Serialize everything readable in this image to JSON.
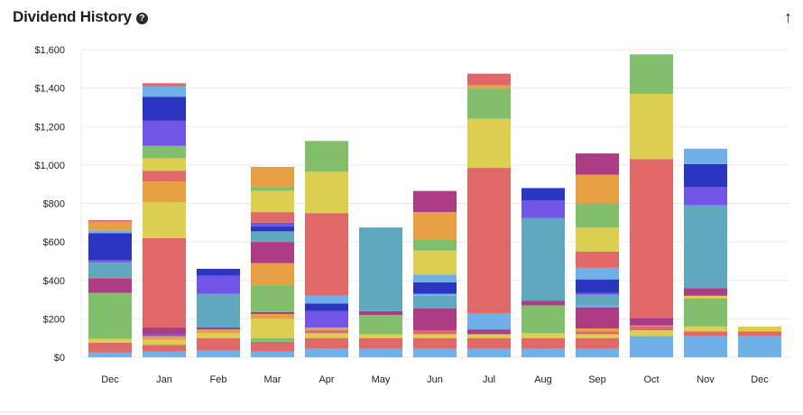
{
  "header": {
    "title": "Dividend History",
    "help_icon": "?",
    "export_icon": "↑"
  },
  "palette": {
    "blue_light": "#6fb0e8",
    "red": "#e06868",
    "yellow": "#dcce50",
    "green": "#82bf6c",
    "purple": "#7255e6",
    "blue_dark": "#2a35c0",
    "orange": "#e8a045",
    "magenta": "#ac3c84",
    "teal": "#5fa8c0"
  },
  "chart_data": {
    "type": "bar",
    "stacked": true,
    "ylim": [
      0,
      1600
    ],
    "y_ticks": [
      "$0",
      "$200",
      "$400",
      "$600",
      "$800",
      "$1,000",
      "$1,200",
      "$1,400",
      "$1,600"
    ],
    "y_tick_values": [
      0,
      200,
      400,
      600,
      800,
      1000,
      1200,
      1400,
      1600
    ],
    "grid": true,
    "categories": [
      "Dec",
      "Jan",
      "Feb",
      "Mar",
      "Apr",
      "May",
      "Jun",
      "Jul",
      "Aug",
      "Sep",
      "Oct",
      "Nov",
      "Dec"
    ],
    "stacks": [
      [
        [
          "blue_light",
          25
        ],
        [
          "red",
          50
        ],
        [
          "yellow",
          20
        ],
        [
          "green",
          240
        ],
        [
          "magenta",
          75
        ],
        [
          "red",
          5
        ],
        [
          "teal",
          80
        ],
        [
          "purple",
          10
        ],
        [
          "blue_dark",
          140
        ],
        [
          "blue_light",
          15
        ],
        [
          "orange",
          45
        ],
        [
          "red",
          8
        ]
      ],
      [
        [
          "blue_light",
          30
        ],
        [
          "red",
          35
        ],
        [
          "yellow",
          25
        ],
        [
          "orange",
          20
        ],
        [
          "purple",
          10
        ],
        [
          "magenta",
          35
        ],
        [
          "red",
          465
        ],
        [
          "yellow",
          185
        ],
        [
          "orange",
          110
        ],
        [
          "red",
          55
        ],
        [
          "yellow",
          65
        ],
        [
          "green",
          65
        ],
        [
          "purple",
          130
        ],
        [
          "blue_dark",
          125
        ],
        [
          "blue_light",
          55
        ],
        [
          "red",
          15
        ]
      ],
      [
        [
          "blue_light",
          35
        ],
        [
          "red",
          65
        ],
        [
          "yellow",
          25
        ],
        [
          "orange",
          20
        ],
        [
          "magenta",
          10
        ],
        [
          "teal",
          175
        ],
        [
          "purple",
          95
        ],
        [
          "blue_dark",
          35
        ]
      ],
      [
        [
          "blue_light",
          30
        ],
        [
          "red",
          50
        ],
        [
          "green",
          20
        ],
        [
          "yellow",
          100
        ],
        [
          "orange",
          25
        ],
        [
          "magenta",
          10
        ],
        [
          "green",
          140
        ],
        [
          "orange",
          115
        ],
        [
          "magenta",
          110
        ],
        [
          "teal",
          55
        ],
        [
          "blue_dark",
          25
        ],
        [
          "purple",
          20
        ],
        [
          "red",
          55
        ],
        [
          "yellow",
          110
        ],
        [
          "green",
          20
        ],
        [
          "orange",
          105
        ]
      ],
      [
        [
          "blue_light",
          45
        ],
        [
          "red",
          55
        ],
        [
          "yellow",
          25
        ],
        [
          "red",
          15
        ],
        [
          "green",
          5
        ],
        [
          "orange",
          10
        ],
        [
          "purple",
          85
        ],
        [
          "blue_dark",
          40
        ],
        [
          "blue_light",
          40
        ],
        [
          "red",
          430
        ],
        [
          "yellow",
          215
        ],
        [
          "green",
          160
        ]
      ],
      [
        [
          "blue_light",
          45
        ],
        [
          "red",
          55
        ],
        [
          "yellow",
          20
        ],
        [
          "green",
          100
        ],
        [
          "magenta",
          20
        ],
        [
          "teal",
          435
        ]
      ],
      [
        [
          "blue_light",
          45
        ],
        [
          "red",
          55
        ],
        [
          "yellow",
          20
        ],
        [
          "red",
          20
        ],
        [
          "magenta",
          115
        ],
        [
          "teal",
          65
        ],
        [
          "blue_light",
          10
        ],
        [
          "blue_dark",
          60
        ],
        [
          "blue_light",
          40
        ],
        [
          "yellow",
          125
        ],
        [
          "green",
          55
        ],
        [
          "orange",
          145
        ],
        [
          "magenta",
          110
        ]
      ],
      [
        [
          "blue_light",
          45
        ],
        [
          "red",
          55
        ],
        [
          "yellow",
          20
        ],
        [
          "magenta",
          25
        ],
        [
          "blue_light",
          85
        ],
        [
          "red",
          755
        ],
        [
          "yellow",
          255
        ],
        [
          "green",
          160
        ],
        [
          "orange",
          15
        ],
        [
          "red",
          60
        ]
      ],
      [
        [
          "blue_light",
          45
        ],
        [
          "red",
          55
        ],
        [
          "yellow",
          25
        ],
        [
          "green",
          145
        ],
        [
          "magenta",
          25
        ],
        [
          "teal",
          430
        ],
        [
          "purple",
          90
        ],
        [
          "blue_dark",
          65
        ]
      ],
      [
        [
          "blue_light",
          45
        ],
        [
          "red",
          55
        ],
        [
          "yellow",
          20
        ],
        [
          "red",
          15
        ],
        [
          "orange",
          15
        ],
        [
          "magenta",
          110
        ],
        [
          "blue_light",
          10
        ],
        [
          "teal",
          55
        ],
        [
          "purple",
          10
        ],
        [
          "blue_dark",
          70
        ],
        [
          "blue_light",
          60
        ],
        [
          "red",
          85
        ],
        [
          "yellow",
          125
        ],
        [
          "green",
          125
        ],
        [
          "orange",
          150
        ],
        [
          "magenta",
          110
        ]
      ],
      [
        [
          "blue_light",
          110
        ],
        [
          "yellow",
          30
        ],
        [
          "red",
          20
        ],
        [
          "green",
          5
        ],
        [
          "magenta",
          40
        ],
        [
          "red",
          825
        ],
        [
          "yellow",
          340
        ],
        [
          "green",
          205
        ]
      ],
      [
        [
          "blue_light",
          110
        ],
        [
          "red",
          25
        ],
        [
          "yellow",
          25
        ],
        [
          "green",
          145
        ],
        [
          "yellow",
          15
        ],
        [
          "magenta",
          40
        ],
        [
          "teal",
          430
        ],
        [
          "purple",
          95
        ],
        [
          "blue_dark",
          120
        ],
        [
          "blue_light",
          80
        ]
      ],
      [
        [
          "blue_light",
          110
        ],
        [
          "red",
          25
        ],
        [
          "yellow",
          25
        ]
      ]
    ]
  }
}
